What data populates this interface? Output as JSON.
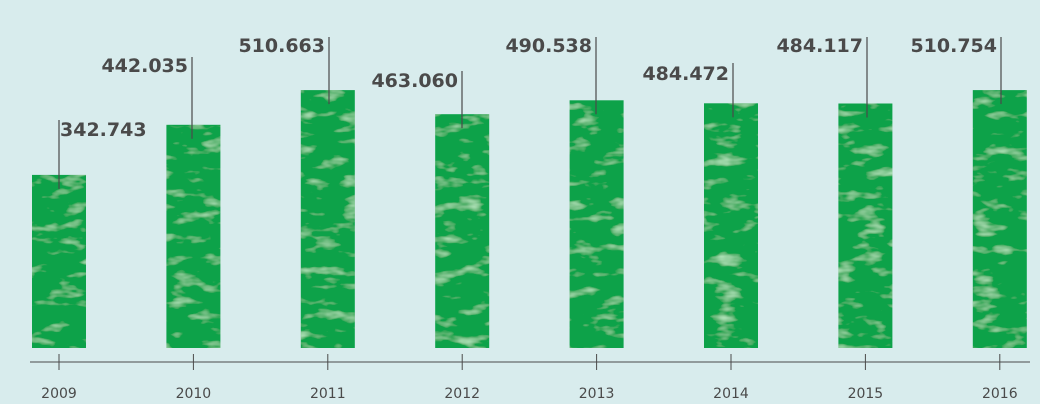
{
  "chart_data": {
    "type": "bar",
    "categories": [
      "2009",
      "2010",
      "2011",
      "2012",
      "2013",
      "2014",
      "2015",
      "2016"
    ],
    "values": [
      342743,
      442035,
      510663,
      463060,
      490538,
      484472,
      484117,
      510754
    ],
    "data_labels": [
      "342.743",
      "442.035",
      "510.663",
      "463.060",
      "490.538",
      "484.472",
      "484.117",
      "510.754"
    ],
    "title": "",
    "xlabel": "",
    "ylabel": "",
    "grid": false,
    "legend": "none",
    "colors": {
      "background": "#d8eced",
      "bar": "#0aa24a",
      "bar_light": "#7ccf86",
      "leader_line": "#4a4a4a",
      "label_text": "#4a4a4a"
    }
  }
}
